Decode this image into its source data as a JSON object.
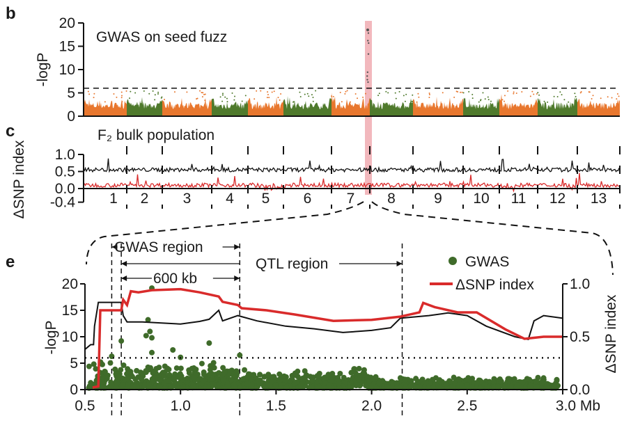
{
  "chart_data": [
    {
      "panel": "b",
      "type": "scatter",
      "title": "GWAS on seed fuzz",
      "ylabel": "-logP",
      "ylim": [
        0,
        20
      ],
      "yticks": [
        "0",
        "5",
        "10",
        "15",
        "20"
      ],
      "threshold": 6,
      "chromosomes": [
        "1",
        "2",
        "3",
        "4",
        "5",
        "6",
        "7",
        "8",
        "9",
        "10",
        "11",
        "12",
        "13"
      ],
      "colors": {
        "odd": "#e8772e",
        "even": "#4f7a2c",
        "highlight": "#f2b8bd"
      },
      "highlight_chromosome": "7",
      "peak_value": 18.5
    },
    {
      "panel": "c",
      "type": "line",
      "title": "F₂ bulk population",
      "ylabel": "ΔSNP index",
      "ylim": [
        -0.4,
        1.0
      ],
      "yticks": [
        "-0.4",
        "0.0",
        "0.5",
        "1.0"
      ],
      "series": [
        {
          "color": "#111111",
          "mean": 0.55
        },
        {
          "color": "#d92b2b",
          "mean": 0.1
        }
      ],
      "xlabels": [
        "1",
        "2",
        "3",
        "4",
        "5",
        "6",
        "7",
        "8",
        "9",
        "10",
        "11",
        "12",
        "13"
      ]
    },
    {
      "panel": "e",
      "type": "line",
      "xlim": [
        0.5,
        3.0
      ],
      "xticks": [
        "0.5",
        "1.0",
        "1.5",
        "2.0",
        "2.5",
        "3.0 Mb"
      ],
      "ylabel_left": "-logP",
      "ylim_left": [
        0,
        20
      ],
      "yticks_left": [
        "0",
        "5",
        "10",
        "15",
        "20"
      ],
      "ylabel_right": "ΔSNP index",
      "ylim_right": [
        0,
        1.0
      ],
      "yticks_right": [
        "0.0",
        "0.5",
        "1.0"
      ],
      "threshold": 6,
      "legend": [
        {
          "name": "GWAS",
          "color": "#3f6b2a",
          "marker": "dot"
        },
        {
          "name": "ΔSNP index",
          "color": "#d92b2b",
          "marker": "line"
        }
      ],
      "annotations": {
        "gwas_region": "GWAS region",
        "qtl_region": "QTL region",
        "kb600": "600 kb"
      },
      "region_bounds_mb": {
        "gwas": [
          0.64,
          1.31
        ],
        "qtl": [
          0.69,
          2.16
        ],
        "kb600": [
          0.69,
          1.31
        ]
      },
      "delta_snp": [
        [
          0.54,
          0.02
        ],
        [
          0.57,
          0.03
        ],
        [
          0.58,
          0.75
        ],
        [
          0.69,
          0.75
        ],
        [
          0.7,
          0.85
        ],
        [
          0.72,
          0.8
        ],
        [
          0.74,
          0.93
        ],
        [
          0.78,
          0.92
        ],
        [
          0.85,
          0.94
        ],
        [
          1.0,
          0.95
        ],
        [
          1.1,
          0.92
        ],
        [
          1.2,
          0.88
        ],
        [
          1.22,
          0.83
        ],
        [
          1.3,
          0.8
        ],
        [
          1.32,
          0.77
        ],
        [
          1.45,
          0.75
        ],
        [
          1.6,
          0.71
        ],
        [
          1.8,
          0.65
        ],
        [
          2.0,
          0.66
        ],
        [
          2.15,
          0.69
        ],
        [
          2.2,
          0.71
        ],
        [
          2.25,
          0.73
        ],
        [
          2.27,
          0.82
        ],
        [
          2.33,
          0.78
        ],
        [
          2.45,
          0.73
        ],
        [
          2.55,
          0.73
        ],
        [
          2.7,
          0.57
        ],
        [
          2.8,
          0.48
        ],
        [
          2.85,
          0.49
        ],
        [
          2.9,
          0.5
        ],
        [
          3.0,
          0.5
        ]
      ],
      "black_line_logp": [
        [
          0.5,
          7.6
        ],
        [
          0.53,
          8.5
        ],
        [
          0.545,
          8.5
        ],
        [
          0.55,
          12
        ],
        [
          0.57,
          16.5
        ],
        [
          0.69,
          16.5
        ],
        [
          0.7,
          14
        ],
        [
          0.72,
          12.8
        ],
        [
          0.8,
          12.8
        ],
        [
          0.9,
          12.6
        ],
        [
          1.0,
          12.4
        ],
        [
          1.1,
          12.9
        ],
        [
          1.15,
          13.3
        ],
        [
          1.2,
          15
        ],
        [
          1.22,
          13
        ],
        [
          1.3,
          14
        ],
        [
          1.4,
          13
        ],
        [
          1.55,
          12
        ],
        [
          1.7,
          11.5
        ],
        [
          1.85,
          10.8
        ],
        [
          2.0,
          11.2
        ],
        [
          2.1,
          11.7
        ],
        [
          2.15,
          13.5
        ],
        [
          2.3,
          14
        ],
        [
          2.4,
          14.5
        ],
        [
          2.5,
          14
        ],
        [
          2.6,
          12
        ],
        [
          2.75,
          10
        ],
        [
          2.82,
          9.5
        ],
        [
          2.85,
          13
        ],
        [
          2.9,
          14
        ],
        [
          3.0,
          13.5
        ]
      ],
      "gwas_top_points": [
        [
          0.85,
          19.2
        ],
        [
          0.83,
          13.2
        ],
        [
          0.84,
          11
        ],
        [
          0.82,
          10.2
        ],
        [
          0.85,
          9.8
        ],
        [
          0.69,
          9.2
        ],
        [
          1.15,
          8.8
        ],
        [
          0.96,
          7.5
        ],
        [
          0.85,
          7
        ],
        [
          0.64,
          6.3
        ],
        [
          1.31,
          6.5
        ],
        [
          1.0,
          6.1
        ],
        [
          1.6,
          3.1
        ],
        [
          2.9,
          2.2
        ]
      ]
    }
  ]
}
